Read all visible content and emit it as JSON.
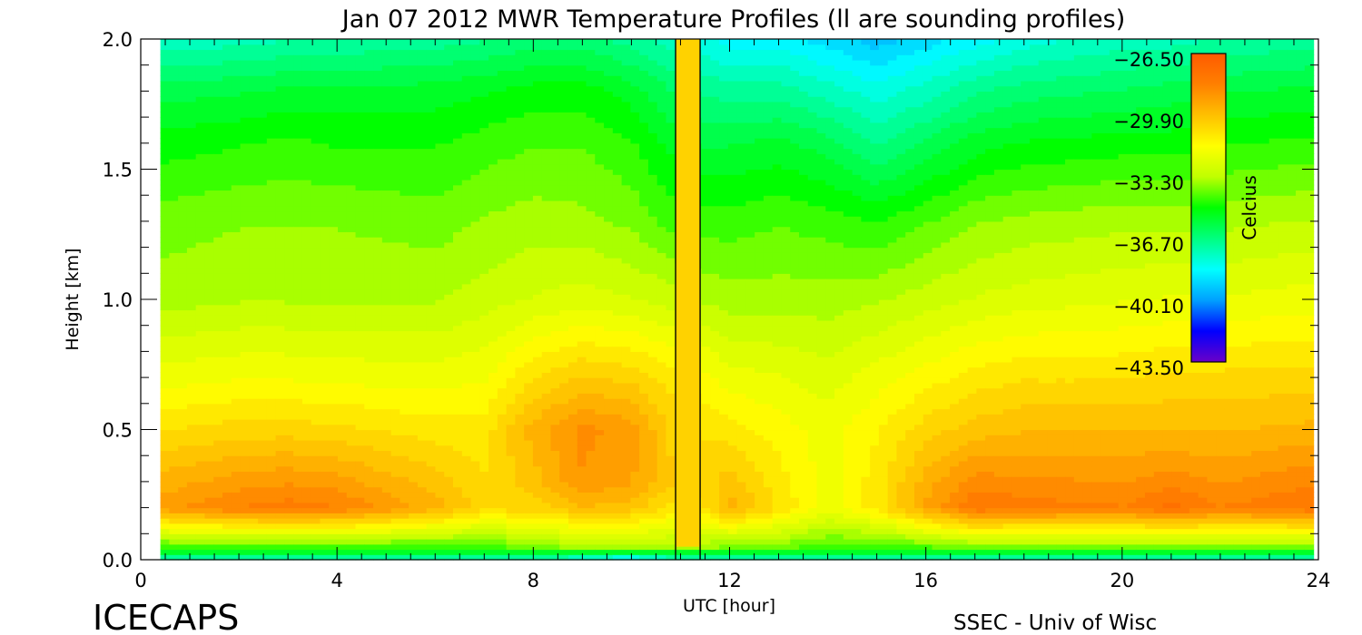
{
  "chart_data": {
    "type": "heatmap",
    "title": "Jan 07 2012 MWR Temperature Profiles (ll are sounding profiles)",
    "xlabel": "UTC [hour]",
    "ylabel": "Height [km]",
    "xlim": [
      0,
      24
    ],
    "ylim": [
      0,
      2.0
    ],
    "x_ticks": [
      "0",
      "4",
      "8",
      "12",
      "16",
      "20",
      "24"
    ],
    "y_ticks": [
      "0.0",
      "0.5",
      "1.0",
      "1.5",
      "2.0"
    ],
    "colorbar": {
      "label": "Celcius",
      "range": [
        -43.5,
        -26.5
      ],
      "ticks": [
        "-26.50",
        "-29.90",
        "-33.30",
        "-36.70",
        "-40.10",
        "-43.50"
      ],
      "colors": [
        "#6a00c8",
        "#0000ff",
        "#00a0ff",
        "#00ffff",
        "#00ff80",
        "#00ff00",
        "#c0ff00",
        "#ffff00",
        "#ffc000",
        "#ff8000",
        "#ff5a00"
      ]
    },
    "data_start_hour": 0.4,
    "data_end_hour": 23.9,
    "data_gap_hours": [
      10.9,
      11.4
    ],
    "sounding_profiles_hour": [
      10.9,
      11.4
    ],
    "hours": [
      0.4,
      2,
      3,
      4,
      6,
      7,
      8,
      9,
      10,
      10.9,
      11.4,
      12,
      13,
      14,
      15,
      16,
      17,
      18,
      20,
      21,
      22,
      23.9
    ],
    "heights_km": [
      0.0,
      0.05,
      0.2,
      0.3,
      0.5,
      0.7,
      1.0,
      1.3,
      1.6,
      1.8,
      2.0
    ],
    "temperature_c": [
      [
        -37.5,
        -34.5,
        -29.0,
        -29.5,
        -30.8,
        -32.0,
        -33.5,
        -34.0,
        -35.0,
        -36.0,
        -37.5
      ],
      [
        -37.5,
        -34.5,
        -28.2,
        -29.0,
        -30.5,
        -31.8,
        -33.3,
        -33.8,
        -34.8,
        -35.8,
        -37.5
      ],
      [
        -37.5,
        -34.5,
        -28.0,
        -28.8,
        -30.5,
        -31.8,
        -33.3,
        -33.8,
        -34.6,
        -35.6,
        -37.3
      ],
      [
        -37.5,
        -34.5,
        -28.2,
        -29.0,
        -30.6,
        -31.9,
        -33.3,
        -33.8,
        -34.8,
        -35.6,
        -37.2
      ],
      [
        -37.5,
        -34.5,
        -29.5,
        -30.0,
        -31.0,
        -32.0,
        -33.3,
        -34.0,
        -34.8,
        -35.5,
        -37.0
      ],
      [
        -37.5,
        -34.5,
        -30.5,
        -30.7,
        -31.0,
        -31.8,
        -33.0,
        -33.7,
        -34.5,
        -35.3,
        -36.8
      ],
      [
        -37.5,
        -34.0,
        -30.5,
        -30.0,
        -29.5,
        -30.8,
        -32.7,
        -33.5,
        -34.3,
        -35.0,
        -36.5
      ],
      [
        -38.5,
        -33.5,
        -29.8,
        -28.8,
        -28.6,
        -30.2,
        -32.5,
        -33.6,
        -34.3,
        -35.0,
        -36.5
      ],
      [
        -39.0,
        -33.5,
        -30.0,
        -29.2,
        -29.0,
        -30.4,
        -32.7,
        -33.9,
        -34.7,
        -35.5,
        -37.0
      ],
      [
        -38.0,
        -33.5,
        -31.0,
        -30.3,
        -30.5,
        -31.0,
        -33.0,
        -34.5,
        -35.5,
        -36.3,
        -37.5
      ],
      [
        -38.0,
        -33.5,
        -31.0,
        -30.5,
        -30.8,
        -31.5,
        -33.3,
        -34.5,
        -35.8,
        -36.8,
        -38.0
      ],
      [
        -37.5,
        -34.0,
        -29.5,
        -30.0,
        -31.0,
        -32.0,
        -33.5,
        -34.5,
        -35.8,
        -37.0,
        -38.5
      ],
      [
        -37.5,
        -34.0,
        -30.8,
        -31.0,
        -31.5,
        -32.2,
        -33.5,
        -34.3,
        -35.6,
        -37.0,
        -38.5
      ],
      [
        -37.5,
        -34.5,
        -32.0,
        -32.0,
        -32.0,
        -32.5,
        -33.5,
        -34.5,
        -36.0,
        -37.5,
        -39.0
      ],
      [
        -37.5,
        -34.5,
        -31.0,
        -31.0,
        -31.3,
        -32.0,
        -33.3,
        -34.8,
        -36.8,
        -38.0,
        -39.5
      ],
      [
        -37.5,
        -34.3,
        -29.2,
        -29.5,
        -30.5,
        -31.5,
        -33.0,
        -34.3,
        -36.2,
        -37.5,
        -39.0
      ],
      [
        -37.5,
        -34.0,
        -27.8,
        -28.5,
        -30.0,
        -31.0,
        -32.7,
        -33.8,
        -35.5,
        -36.8,
        -38.5
      ],
      [
        -37.5,
        -34.0,
        -28.0,
        -28.6,
        -29.8,
        -30.8,
        -32.5,
        -33.6,
        -35.2,
        -36.5,
        -38.0
      ],
      [
        -37.5,
        -34.0,
        -28.2,
        -28.8,
        -29.8,
        -30.8,
        -32.3,
        -33.4,
        -35.0,
        -36.2,
        -37.5
      ],
      [
        -37.5,
        -34.0,
        -27.6,
        -28.4,
        -29.8,
        -30.6,
        -32.2,
        -33.4,
        -35.0,
        -36.0,
        -37.5
      ],
      [
        -37.5,
        -34.0,
        -28.2,
        -28.8,
        -29.8,
        -30.6,
        -32.2,
        -33.4,
        -34.8,
        -35.8,
        -37.2
      ],
      [
        -37.5,
        -34.0,
        -27.8,
        -28.3,
        -29.6,
        -30.5,
        -32.0,
        -33.2,
        -34.6,
        -35.6,
        -37.0
      ]
    ]
  },
  "footer": {
    "brand": "ICECAPS",
    "credit": "SSEC - Univ of Wisc"
  }
}
